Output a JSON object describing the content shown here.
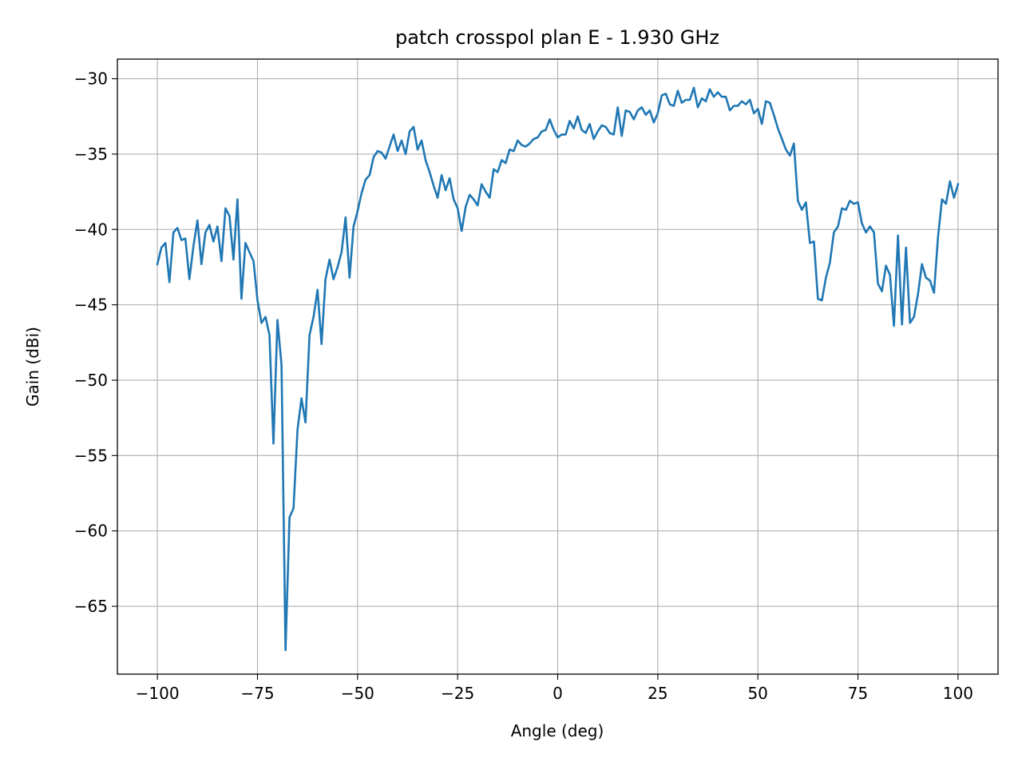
{
  "chart_data": {
    "type": "line",
    "title": "patch crosspol plan E - 1.930 GHz",
    "xlabel": "Angle (deg)",
    "ylabel": "Gain (dBi)",
    "xlim": [
      -110,
      110
    ],
    "ylim": [
      -69.5,
      -28.7
    ],
    "grid": true,
    "xticks": [
      -100,
      -75,
      -50,
      -25,
      0,
      25,
      50,
      75,
      100
    ],
    "xtick_labels": [
      "−100",
      "−75",
      "−50",
      "−25",
      "0",
      "25",
      "50",
      "75",
      "100"
    ],
    "yticks": [
      -30,
      -35,
      -40,
      -45,
      -50,
      -55,
      -60,
      -65
    ],
    "ytick_labels": [
      "−30",
      "−35",
      "−40",
      "−45",
      "−50",
      "−55",
      "−60",
      "−65"
    ],
    "series": [
      {
        "color": "#1f77b4",
        "x": [
          -100,
          -99,
          -98,
          -97,
          -96,
          -95,
          -94,
          -93,
          -92,
          -91,
          -90,
          -89,
          -88,
          -87,
          -86,
          -85,
          -84,
          -83,
          -82,
          -81,
          -80,
          -79,
          -78,
          -77,
          -76,
          -75,
          -74,
          -73,
          -72,
          -71,
          -70,
          -69,
          -68,
          -67,
          -66,
          -65,
          -64,
          -63,
          -62,
          -61,
          -60,
          -59,
          -58,
          -57,
          -56,
          -55,
          -54,
          -53,
          -52,
          -51,
          -50,
          -49,
          -48,
          -47,
          -46,
          -45,
          -44,
          -43,
          -42,
          -41,
          -40,
          -39,
          -38,
          -37,
          -36,
          -35,
          -34,
          -33,
          -32,
          -31,
          -30,
          -29,
          -28,
          -27,
          -26,
          -25,
          -24,
          -23,
          -22,
          -21,
          -20,
          -19,
          -18,
          -17,
          -16,
          -15,
          -14,
          -13,
          -12,
          -11,
          -10,
          -9,
          -8,
          -7,
          -6,
          -5,
          -4,
          -3,
          -2,
          -1,
          0,
          1,
          2,
          3,
          4,
          5,
          6,
          7,
          8,
          9,
          10,
          11,
          12,
          13,
          14,
          15,
          16,
          17,
          18,
          19,
          20,
          21,
          22,
          23,
          24,
          25,
          26,
          27,
          28,
          29,
          30,
          31,
          32,
          33,
          34,
          35,
          36,
          37,
          38,
          39,
          40,
          41,
          42,
          43,
          44,
          45,
          46,
          47,
          48,
          49,
          50,
          51,
          52,
          53,
          54,
          55,
          56,
          57,
          58,
          59,
          60,
          61,
          62,
          63,
          64,
          65,
          66,
          67,
          68,
          69,
          70,
          71,
          72,
          73,
          74,
          75,
          76,
          77,
          78,
          79,
          80,
          81,
          82,
          83,
          84,
          85,
          86,
          87,
          88,
          89,
          90,
          91,
          92,
          93,
          94,
          95,
          96,
          97,
          98,
          99,
          100
        ],
        "y": [
          -42.3,
          -41.2,
          -40.9,
          -43.5,
          -40.2,
          -39.9,
          -40.7,
          -40.6,
          -43.3,
          -41.1,
          -39.4,
          -42.3,
          -40.2,
          -39.7,
          -40.8,
          -39.8,
          -42.1,
          -38.6,
          -39.1,
          -42.0,
          -38.0,
          -44.6,
          -40.9,
          -41.5,
          -42.1,
          -44.7,
          -46.2,
          -45.8,
          -47.0,
          -54.2,
          -46.0,
          -49.0,
          -67.9,
          -59.1,
          -58.5,
          -53.3,
          -51.2,
          -52.8,
          -47.0,
          -45.8,
          -44.0,
          -47.6,
          -43.3,
          -42.0,
          -43.3,
          -42.5,
          -41.5,
          -39.2,
          -43.2,
          -39.8,
          -38.8,
          -37.6,
          -36.7,
          -36.4,
          -35.2,
          -34.8,
          -34.9,
          -35.3,
          -34.5,
          -33.7,
          -34.8,
          -34.1,
          -35.0,
          -33.5,
          -33.2,
          -34.7,
          -34.1,
          -35.4,
          -36.2,
          -37.1,
          -37.9,
          -36.4,
          -37.4,
          -36.6,
          -38.0,
          -38.6,
          -40.1,
          -38.5,
          -37.7,
          -38.0,
          -38.4,
          -37.0,
          -37.5,
          -37.9,
          -36.0,
          -36.2,
          -35.4,
          -35.6,
          -34.7,
          -34.8,
          -34.1,
          -34.4,
          -34.5,
          -34.3,
          -34.0,
          -33.9,
          -33.5,
          -33.4,
          -32.7,
          -33.4,
          -33.9,
          -33.7,
          -33.7,
          -32.8,
          -33.3,
          -32.5,
          -33.4,
          -33.6,
          -33.0,
          -34.0,
          -33.5,
          -33.1,
          -33.2,
          -33.6,
          -33.7,
          -31.9,
          -33.8,
          -32.1,
          -32.2,
          -32.7,
          -32.1,
          -31.9,
          -32.4,
          -32.1,
          -32.9,
          -32.3,
          -31.1,
          -31.0,
          -31.7,
          -31.8,
          -30.8,
          -31.6,
          -31.4,
          -31.4,
          -30.6,
          -31.9,
          -31.3,
          -31.5,
          -30.7,
          -31.2,
          -30.9,
          -31.2,
          -31.2,
          -32.1,
          -31.8,
          -31.8,
          -31.5,
          -31.7,
          -31.4,
          -32.3,
          -32.0,
          -33.0,
          -31.5,
          -31.6,
          -32.4,
          -33.3,
          -34.0,
          -34.7,
          -35.1,
          -34.3,
          -38.1,
          -38.7,
          -38.2,
          -40.9,
          -40.8,
          -44.6,
          -44.7,
          -43.2,
          -42.2,
          -40.2,
          -39.8,
          -38.6,
          -38.7,
          -38.1,
          -38.3,
          -38.2,
          -39.6,
          -40.2,
          -39.8,
          -40.2,
          -43.6,
          -44.1,
          -42.4,
          -43.0,
          -46.4,
          -40.4,
          -46.3,
          -41.2,
          -46.2,
          -45.8,
          -44.3,
          -42.3,
          -43.2,
          -43.4,
          -44.2,
          -40.5,
          -38.0,
          -38.3,
          -36.8,
          -37.9,
          -37.0
        ]
      }
    ]
  }
}
